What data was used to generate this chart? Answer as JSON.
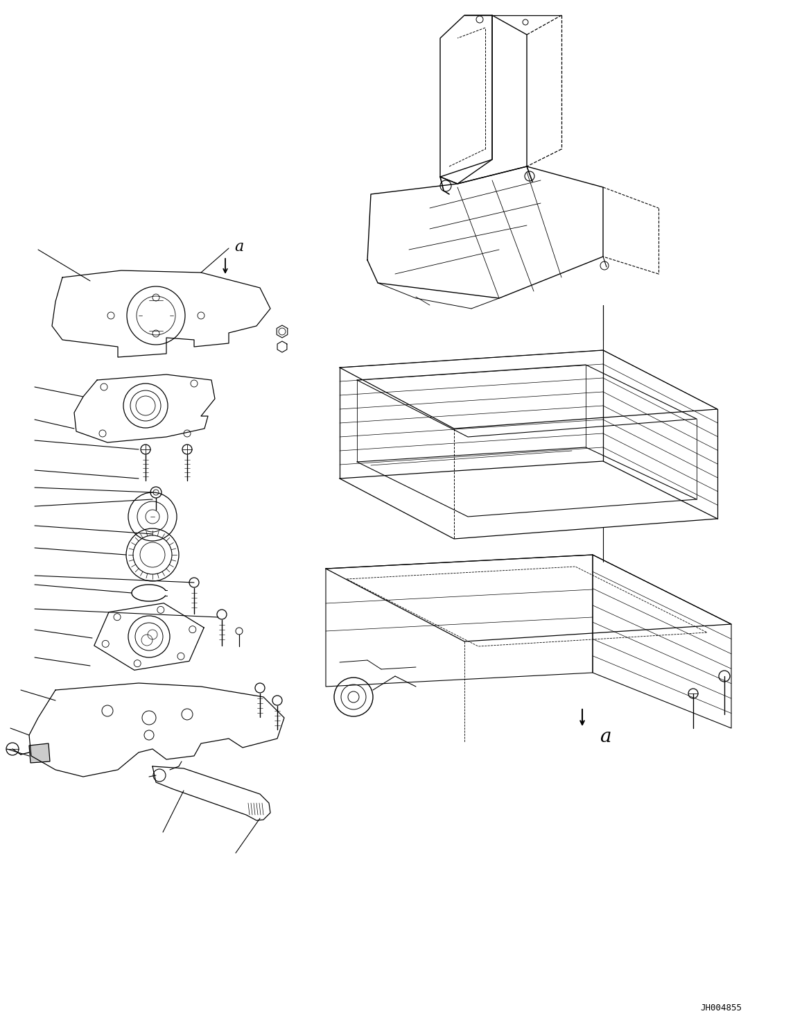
{
  "figure_width": 11.57,
  "figure_height": 14.91,
  "dpi": 100,
  "bg_color": "#ffffff",
  "line_color": "#000000",
  "part_code": "JH004855",
  "label_a": "a"
}
